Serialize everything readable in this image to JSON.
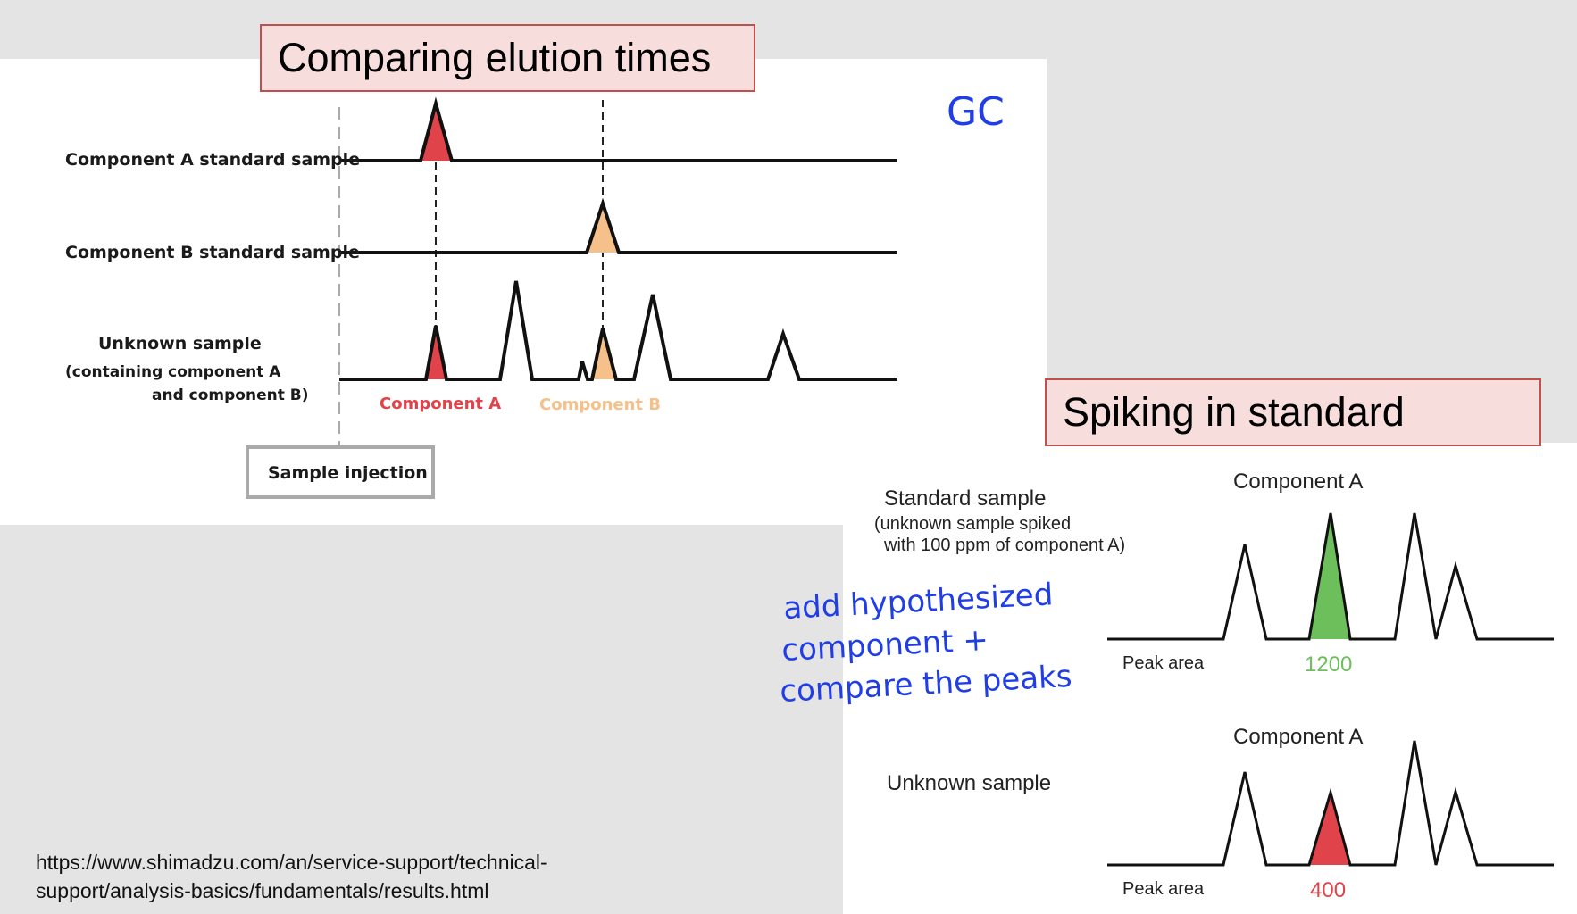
{
  "left_panel": {
    "title": "Comparing elution times",
    "rows": {
      "a_label": "Component A standard sample",
      "b_label": "Component B standard sample",
      "unknown_line1": "Unknown sample",
      "unknown_line2": "(containing component A",
      "unknown_line3": "and component B)"
    },
    "component_a_label": "Component A",
    "component_b_label": "Component B",
    "injection_label": "Sample injection",
    "annotation": "GC"
  },
  "right_panel": {
    "title": "Spiking in standard",
    "standard_label": "Standard sample",
    "standard_note_line1": "(unknown sample spiked",
    "standard_note_line2": "with 100 ppm of component A)",
    "unknown_label": "Unknown sample",
    "component_a_top": "Component A",
    "component_a_bottom": "Component A",
    "peak_area_label_top": "Peak area",
    "peak_area_label_bottom": "Peak area",
    "peak_area_standard": "1200",
    "peak_area_unknown": "400",
    "annotation_line1": "add hypothesized",
    "annotation_line2": "component +",
    "annotation_line3": "compare the peaks"
  },
  "source": {
    "line1": "https://www.shimadzu.com/an/service-support/technical-",
    "line2": "support/analysis-basics/fundamentals/results.html"
  },
  "colors": {
    "component_a": "#e0444a",
    "component_b": "#f5c08a",
    "green": "#6cbf5a",
    "handwriting": "#1f3ee8",
    "title_fill": "#f7dedd",
    "title_border": "#c0504d"
  }
}
